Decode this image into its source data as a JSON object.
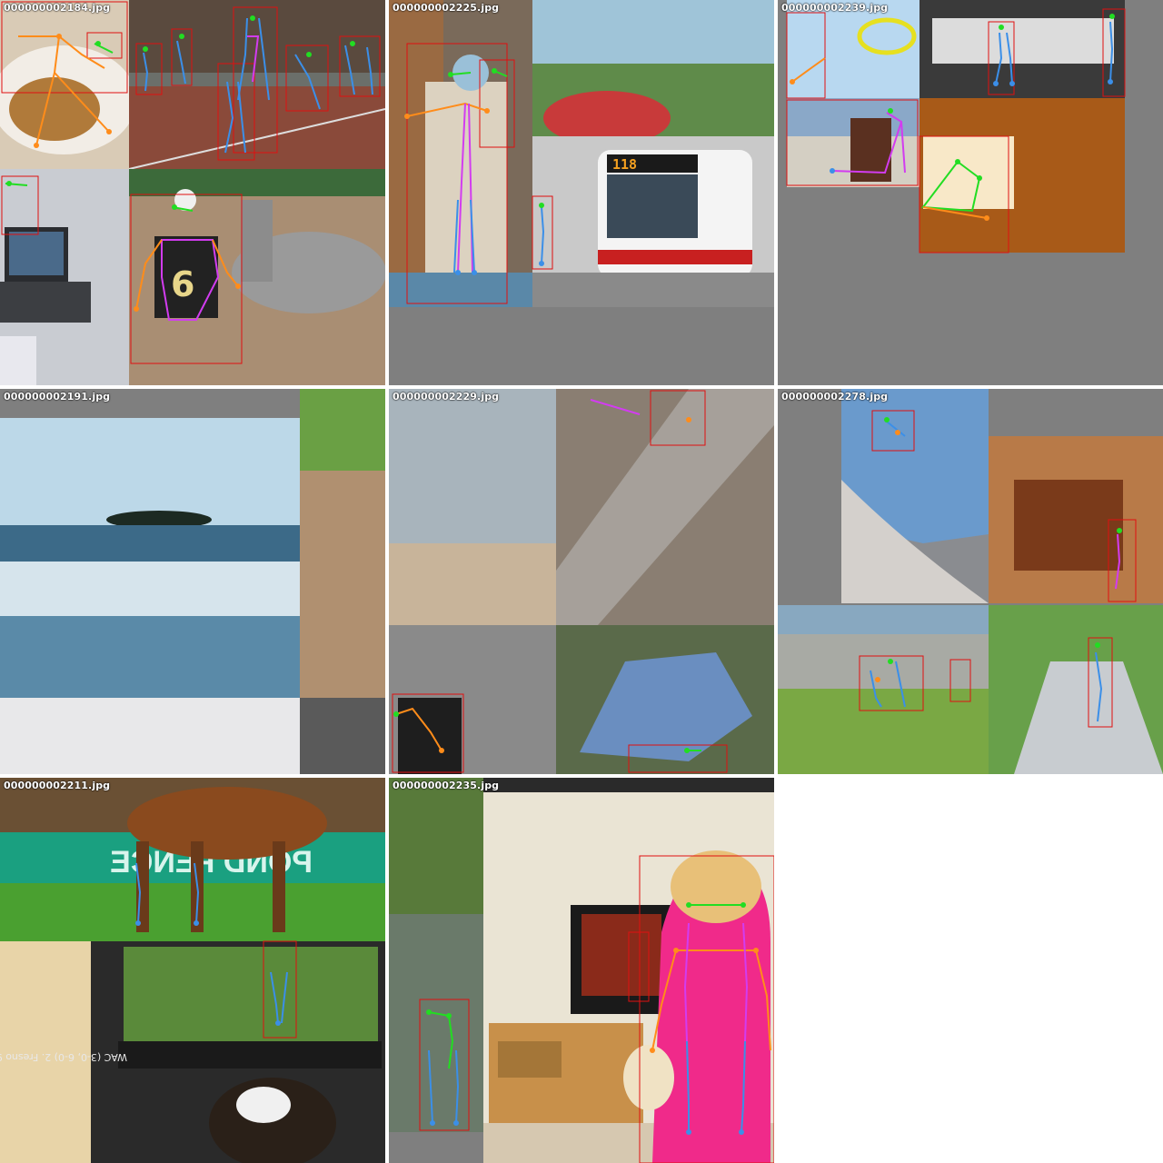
{
  "panels": [
    {
      "id": "p1",
      "filename": "000000002184.jpg"
    },
    {
      "id": "p2",
      "filename": "000000002225.jpg"
    },
    {
      "id": "p3",
      "filename": "000000002239.jpg"
    },
    {
      "id": "p4",
      "filename": "000000002191.jpg"
    },
    {
      "id": "p5",
      "filename": "000000002229.jpg"
    },
    {
      "id": "p6",
      "filename": "000000002278.jpg"
    },
    {
      "id": "p7",
      "filename": "000000002211.jpg"
    },
    {
      "id": "p8",
      "filename": "000000002235.jpg"
    }
  ],
  "scene_text": {
    "bus_sign": "118",
    "banner": "POND FENCE",
    "jersey": "6",
    "ticker": "WAC (3-0, 6-0) 2. Fresno 9- 2-0, 3-2) 3. San"
  },
  "colors": {
    "background": "#7f7f7f",
    "box": "#e01010",
    "limb_arm": "#ff8c1a",
    "limb_leg": "#3b8fe8",
    "torso": "#d23cf0",
    "head": "#22dd22"
  }
}
